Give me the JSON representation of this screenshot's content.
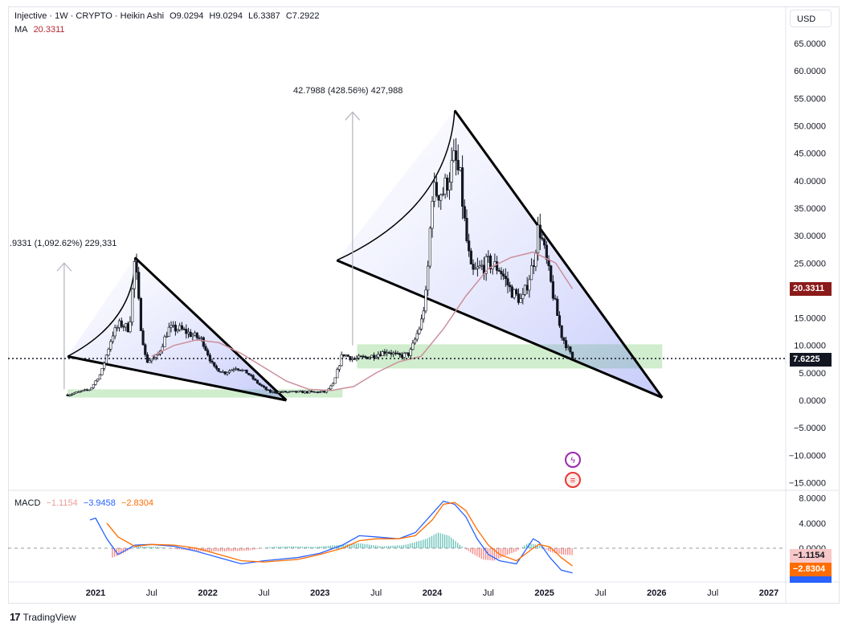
{
  "legend": {
    "symbol": "Injective · 1W · CRYPTO · Heikin Ashi",
    "ohlc": [
      "O9.0294",
      "H9.0294",
      "L6.3387",
      "C7.2922"
    ],
    "ma_label": "MA",
    "ma_value": "20.3311",
    "macd_label": "MACD",
    "macd_values": [
      "−1.1154",
      "−3.9458",
      "−2.8304"
    ]
  },
  "currency_button": "USD",
  "price_tags": {
    "ma": "20.3311",
    "last": "7.6225",
    "macd_hist": "−1.1154",
    "macd_signal": "−2.8304"
  },
  "annotations": {
    "measure1": ".9331 (1,092.62%) 229,331",
    "measure2": "42.7988 (428.56%) 427,988"
  },
  "logo": "TradingView",
  "colors": {
    "up": "#131722",
    "ma": "#cc8f9b",
    "macd": "#2962ff",
    "signal": "#ff6d00",
    "hist_up": "#26a69a",
    "hist_down": "#ef5350",
    "zone": "#b7e4b3",
    "wedge": "#6a5acd"
  },
  "chart_data": [
    {
      "type": "candlestick",
      "title": "Injective · 1W · CRYPTO · Heikin Ashi",
      "ylim": [
        -15,
        67
      ],
      "yticks": [
        "65.0000",
        "60.0000",
        "55.0000",
        "50.0000",
        "45.0000",
        "40.0000",
        "35.0000",
        "30.0000",
        "25.0000",
        "20.0000",
        "15.0000",
        "10.0000",
        "5.0000",
        "0.0000",
        "−5.0000",
        "−10.0000",
        "−15.0000"
      ],
      "xticks": [
        "2021",
        "Jul",
        "2022",
        "Jul",
        "2023",
        "Jul",
        "2024",
        "Jul",
        "2025",
        "Jul",
        "2026",
        "Jul",
        "2027"
      ],
      "price_path_time": [
        2020.75,
        2020.95,
        2021.05,
        2021.15,
        2021.22,
        2021.3,
        2021.35,
        2021.4,
        2021.45,
        2021.55,
        2021.65,
        2021.75,
        2021.85,
        2021.95,
        2022.05,
        2022.15,
        2022.25,
        2022.35,
        2022.45,
        2022.55,
        2022.65,
        2022.8,
        2022.95,
        2023.05,
        2023.12,
        2023.2,
        2023.3,
        2023.45,
        2023.6,
        2023.7,
        2023.8,
        2023.9,
        2023.95,
        2024.0,
        2024.1,
        2024.2,
        2024.25,
        2024.3,
        2024.35,
        2024.5,
        2024.6,
        2024.7,
        2024.8,
        2024.9,
        2024.95,
        2025.05,
        2025.15,
        2025.25
      ],
      "price_path_value": [
        1.0,
        2.0,
        5.0,
        12.0,
        14.0,
        13.0,
        26.0,
        14.0,
        7.0,
        8.0,
        13.0,
        13.0,
        12.0,
        11.0,
        6.0,
        5.0,
        6.0,
        5.0,
        3.0,
        1.5,
        1.5,
        1.5,
        1.5,
        1.5,
        3.0,
        8.5,
        7.5,
        8.0,
        9.0,
        8.0,
        8.5,
        14.0,
        20.0,
        38.0,
        38.0,
        44.0,
        40.0,
        30.0,
        23.0,
        25.0,
        24.0,
        20.0,
        18.0,
        25.0,
        32.0,
        22.0,
        12.0,
        7.6
      ],
      "ma_time": [
        2021.5,
        2021.7,
        2021.9,
        2022.1,
        2022.3,
        2022.5,
        2022.7,
        2022.9,
        2023.1,
        2023.3,
        2023.5,
        2023.7,
        2023.9,
        2024.1,
        2024.3,
        2024.5,
        2024.7,
        2024.9,
        2025.1,
        2025.25
      ],
      "ma_value": [
        8.0,
        10.0,
        11.0,
        10.5,
        8.5,
        6.0,
        3.5,
        2.0,
        1.8,
        2.5,
        5.0,
        7.0,
        8.0,
        13.0,
        19.0,
        24.0,
        26.0,
        27.0,
        25.0,
        20.3
      ],
      "current_price": 7.6225,
      "ma_current": 20.3311,
      "measures": [
        {
          "from_time": 2020.72,
          "from_value": 2.0,
          "to_value": 25.0
        },
        {
          "from_time": 2023.29,
          "from_value": 10.0,
          "to_value": 52.5
        }
      ],
      "wedges": [
        {
          "points": [
            [
              2020.75,
              8.0
            ],
            [
              2021.35,
              26.0
            ],
            [
              2022.7,
              0.0
            ]
          ],
          "lower_left": [
            2020.75,
            8.0
          ]
        },
        {
          "points": [
            [
              2023.15,
              25.5
            ],
            [
              2024.2,
              52.8
            ],
            [
              2026.05,
              0.5
            ]
          ],
          "lower_left": [
            2023.15,
            25.5
          ]
        }
      ],
      "zones": [
        {
          "x0": 2020.75,
          "x1": 2023.2,
          "y0": 0.5,
          "y1": 2.0
        },
        {
          "x0": 2023.33,
          "x1": 2026.05,
          "y0": 5.8,
          "y1": 10.2
        }
      ]
    },
    {
      "type": "line",
      "title": "MACD",
      "ylim": [
        -4.5,
        8.5
      ],
      "yticks": [
        "8.0000",
        "4.0000",
        "0.0000"
      ],
      "macd_time": [
        2020.95,
        2021.0,
        2021.1,
        2021.2,
        2021.35,
        2021.5,
        2021.7,
        2021.9,
        2022.1,
        2022.3,
        2022.5,
        2022.8,
        2023.0,
        2023.2,
        2023.35,
        2023.5,
        2023.7,
        2023.85,
        2024.0,
        2024.1,
        2024.2,
        2024.3,
        2024.4,
        2024.5,
        2024.6,
        2024.75,
        2024.9,
        2024.95,
        2025.05,
        2025.15,
        2025.25
      ],
      "macd_value": [
        4.5,
        4.8,
        1.5,
        -1.0,
        0.5,
        0.6,
        0.3,
        -0.5,
        -1.5,
        -2.5,
        -2.0,
        -1.5,
        -0.8,
        0.5,
        2.0,
        1.8,
        1.5,
        2.5,
        5.5,
        7.5,
        7.0,
        5.0,
        1.5,
        -1.0,
        -2.0,
        -2.5,
        1.5,
        1.0,
        -1.5,
        -3.5,
        -3.9458
      ],
      "signal_time": [
        2021.1,
        2021.2,
        2021.35,
        2021.5,
        2021.7,
        2021.9,
        2022.1,
        2022.3,
        2022.5,
        2022.8,
        2023.0,
        2023.2,
        2023.35,
        2023.5,
        2023.7,
        2023.85,
        2024.0,
        2024.1,
        2024.2,
        2024.3,
        2024.4,
        2024.5,
        2024.6,
        2024.75,
        2024.9,
        2024.95,
        2025.05,
        2025.15,
        2025.25
      ],
      "signal_value": [
        4.0,
        1.8,
        0.3,
        0.6,
        0.5,
        0.0,
        -1.0,
        -2.0,
        -2.2,
        -1.8,
        -1.0,
        0.0,
        1.2,
        1.5,
        1.5,
        2.0,
        4.5,
        7.0,
        7.3,
        6.0,
        3.0,
        0.5,
        -1.0,
        -2.0,
        0.0,
        0.6,
        0.2,
        -1.5,
        -2.8304
      ],
      "hist_time": [
        2021.15,
        2021.25,
        2021.35,
        2021.55,
        2021.75,
        2021.95,
        2022.15,
        2022.35,
        2022.55,
        2022.75,
        2022.95,
        2023.15,
        2023.35,
        2023.55,
        2023.75,
        2023.95,
        2024.05,
        2024.15,
        2024.25,
        2024.35,
        2024.45,
        2024.55,
        2024.65,
        2024.75,
        2024.85,
        2024.95,
        2025.05,
        2025.15,
        2025.25
      ],
      "hist_value": [
        -1.5,
        -0.8,
        0.3,
        0.2,
        -0.2,
        -0.5,
        -0.5,
        -0.4,
        0.2,
        0.3,
        0.2,
        0.5,
        0.8,
        0.3,
        0.5,
        1.5,
        2.5,
        2.0,
        0.5,
        -0.8,
        -1.8,
        -2.0,
        -1.2,
        -0.5,
        0.8,
        0.5,
        -0.6,
        -1.0,
        -1.1154
      ],
      "current": {
        "macd": -3.9458,
        "signal": -2.8304,
        "hist": -1.1154
      }
    }
  ]
}
